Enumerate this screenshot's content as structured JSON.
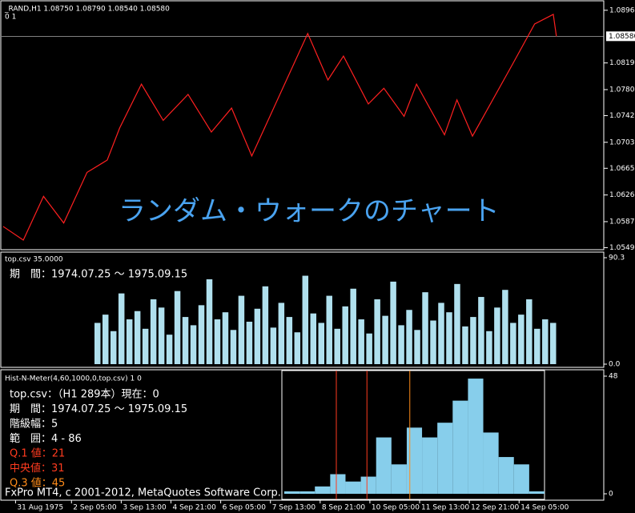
{
  "window": {
    "footer": "FxPro MT4, c 2001-2012, MetaQuotes Software Corp."
  },
  "chart_data": [
    {
      "type": "line",
      "title": "_RAND,H1  1.08750 1.08790 1.08540 1.08580",
      "subtitle": "0  1",
      "annotation": "ランダム・ウォークのチャート",
      "x": [
        -44,
        -31,
        -18,
        -5,
        10,
        23,
        31,
        45,
        59,
        75,
        90,
        103,
        116,
        152,
        165,
        175,
        191,
        201,
        214,
        222,
        240,
        248,
        258,
        284,
        298,
        310,
        312
      ],
      "series": [
        {
          "color": "#ff2020",
          "values": [
            1.058,
            1.056,
            1.0624,
            1.0585,
            1.0659,
            1.0677,
            1.0724,
            1.0788,
            1.0735,
            1.0773,
            1.0718,
            1.0753,
            1.0683,
            1.0862,
            1.0794,
            1.0829,
            1.0759,
            1.0782,
            1.0741,
            1.0788,
            1.0714,
            1.0765,
            1.0712,
            1.0818,
            1.0876,
            1.089,
            1.0858
          ]
        }
      ],
      "xlim": [
        -46,
        343
      ],
      "xticks": [
        {
          "value": -36,
          "label": "31 Aug 1975"
        },
        {
          "value": 0,
          "label": "2 Sep 05:00"
        },
        {
          "value": 32,
          "label": "3 Sep 13:00"
        },
        {
          "value": 64,
          "label": "4 Sep 21:00"
        },
        {
          "value": 96,
          "label": "6 Sep 05:00"
        },
        {
          "value": 128,
          "label": "7 Sep 13:00"
        },
        {
          "value": 160,
          "label": "8 Sep 21:00"
        },
        {
          "value": 192,
          "label": "10 Sep 05:00"
        },
        {
          "value": 224,
          "label": "11 Sep 13:00"
        },
        {
          "value": 256,
          "label": "12 Sep 21:00"
        },
        {
          "value": 288,
          "label": "14 Sep 05:00"
        }
      ],
      "ylim": [
        1.0546,
        1.0911
      ],
      "yticks": [
        {
          "value": 1.0896,
          "label": "1.08960"
        },
        {
          "value": 1.0819,
          "label": "1.08190"
        },
        {
          "value": 1.078,
          "label": "1.07800"
        },
        {
          "value": 1.0742,
          "label": "1.07420"
        },
        {
          "value": 1.0703,
          "label": "1.07030"
        },
        {
          "value": 1.0665,
          "label": "1.06650"
        },
        {
          "value": 1.0626,
          "label": "1.06260"
        },
        {
          "value": 1.0587,
          "label": "1.05870"
        },
        {
          "value": 1.0549,
          "label": "1.05490"
        }
      ],
      "current_price": {
        "value": 1.0858,
        "label": "1.08580"
      }
    },
    {
      "type": "bar",
      "title": "top.csv 35.0000",
      "subtitle": "期　間：1974.07.25 ～ 1975.09.15",
      "color": "#b0e0ee",
      "values": [
        35,
        42,
        28,
        60,
        38,
        45,
        30,
        55,
        48,
        25,
        62,
        40,
        33,
        50,
        72,
        38,
        44,
        29,
        58,
        36,
        47,
        66,
        31,
        52,
        40,
        27,
        75,
        43,
        35,
        58,
        30,
        49,
        64,
        38,
        26,
        55,
        41,
        70,
        33,
        46,
        29,
        61,
        37,
        52,
        44,
        68,
        32,
        40,
        57,
        28,
        48,
        63,
        35,
        42,
        55,
        30,
        38,
        35
      ],
      "ylim": [
        0,
        90.3
      ],
      "yticks": [
        90.3,
        {
          "value": 0,
          "label": "0.0"
        }
      ]
    },
    {
      "type": "histogram",
      "title": "Hist-N-Meter(4,60,1000,0,top.csv) 1 0",
      "color": "#87ceeb",
      "info": [
        "top.csv：（H1 289本）現在：0",
        "期　間：1974.07.25 ～ 1975.09.15",
        "階級幅：5",
        "範　囲：4 - 86"
      ],
      "quantiles": [
        {
          "label": "Q.1 値：21",
          "value": 21,
          "color": "#ff3b1f"
        },
        {
          "label": "中央値：31",
          "value": 31,
          "color": "#ff3b1f"
        },
        {
          "label": "Q.3 値：45",
          "value": 45,
          "color": "#ff8c1a"
        }
      ],
      "bins": [
        4,
        9,
        14,
        19,
        24,
        29,
        34,
        39,
        44,
        49,
        54,
        59,
        64,
        69,
        74,
        79,
        84,
        89
      ],
      "values": [
        1,
        1,
        3,
        8,
        5,
        7,
        23,
        12,
        27,
        23,
        29,
        38,
        47,
        25,
        15,
        12,
        1
      ],
      "xlim": [
        4,
        89
      ],
      "ylim": [
        0,
        48
      ],
      "yticks": [
        0,
        48
      ]
    }
  ]
}
